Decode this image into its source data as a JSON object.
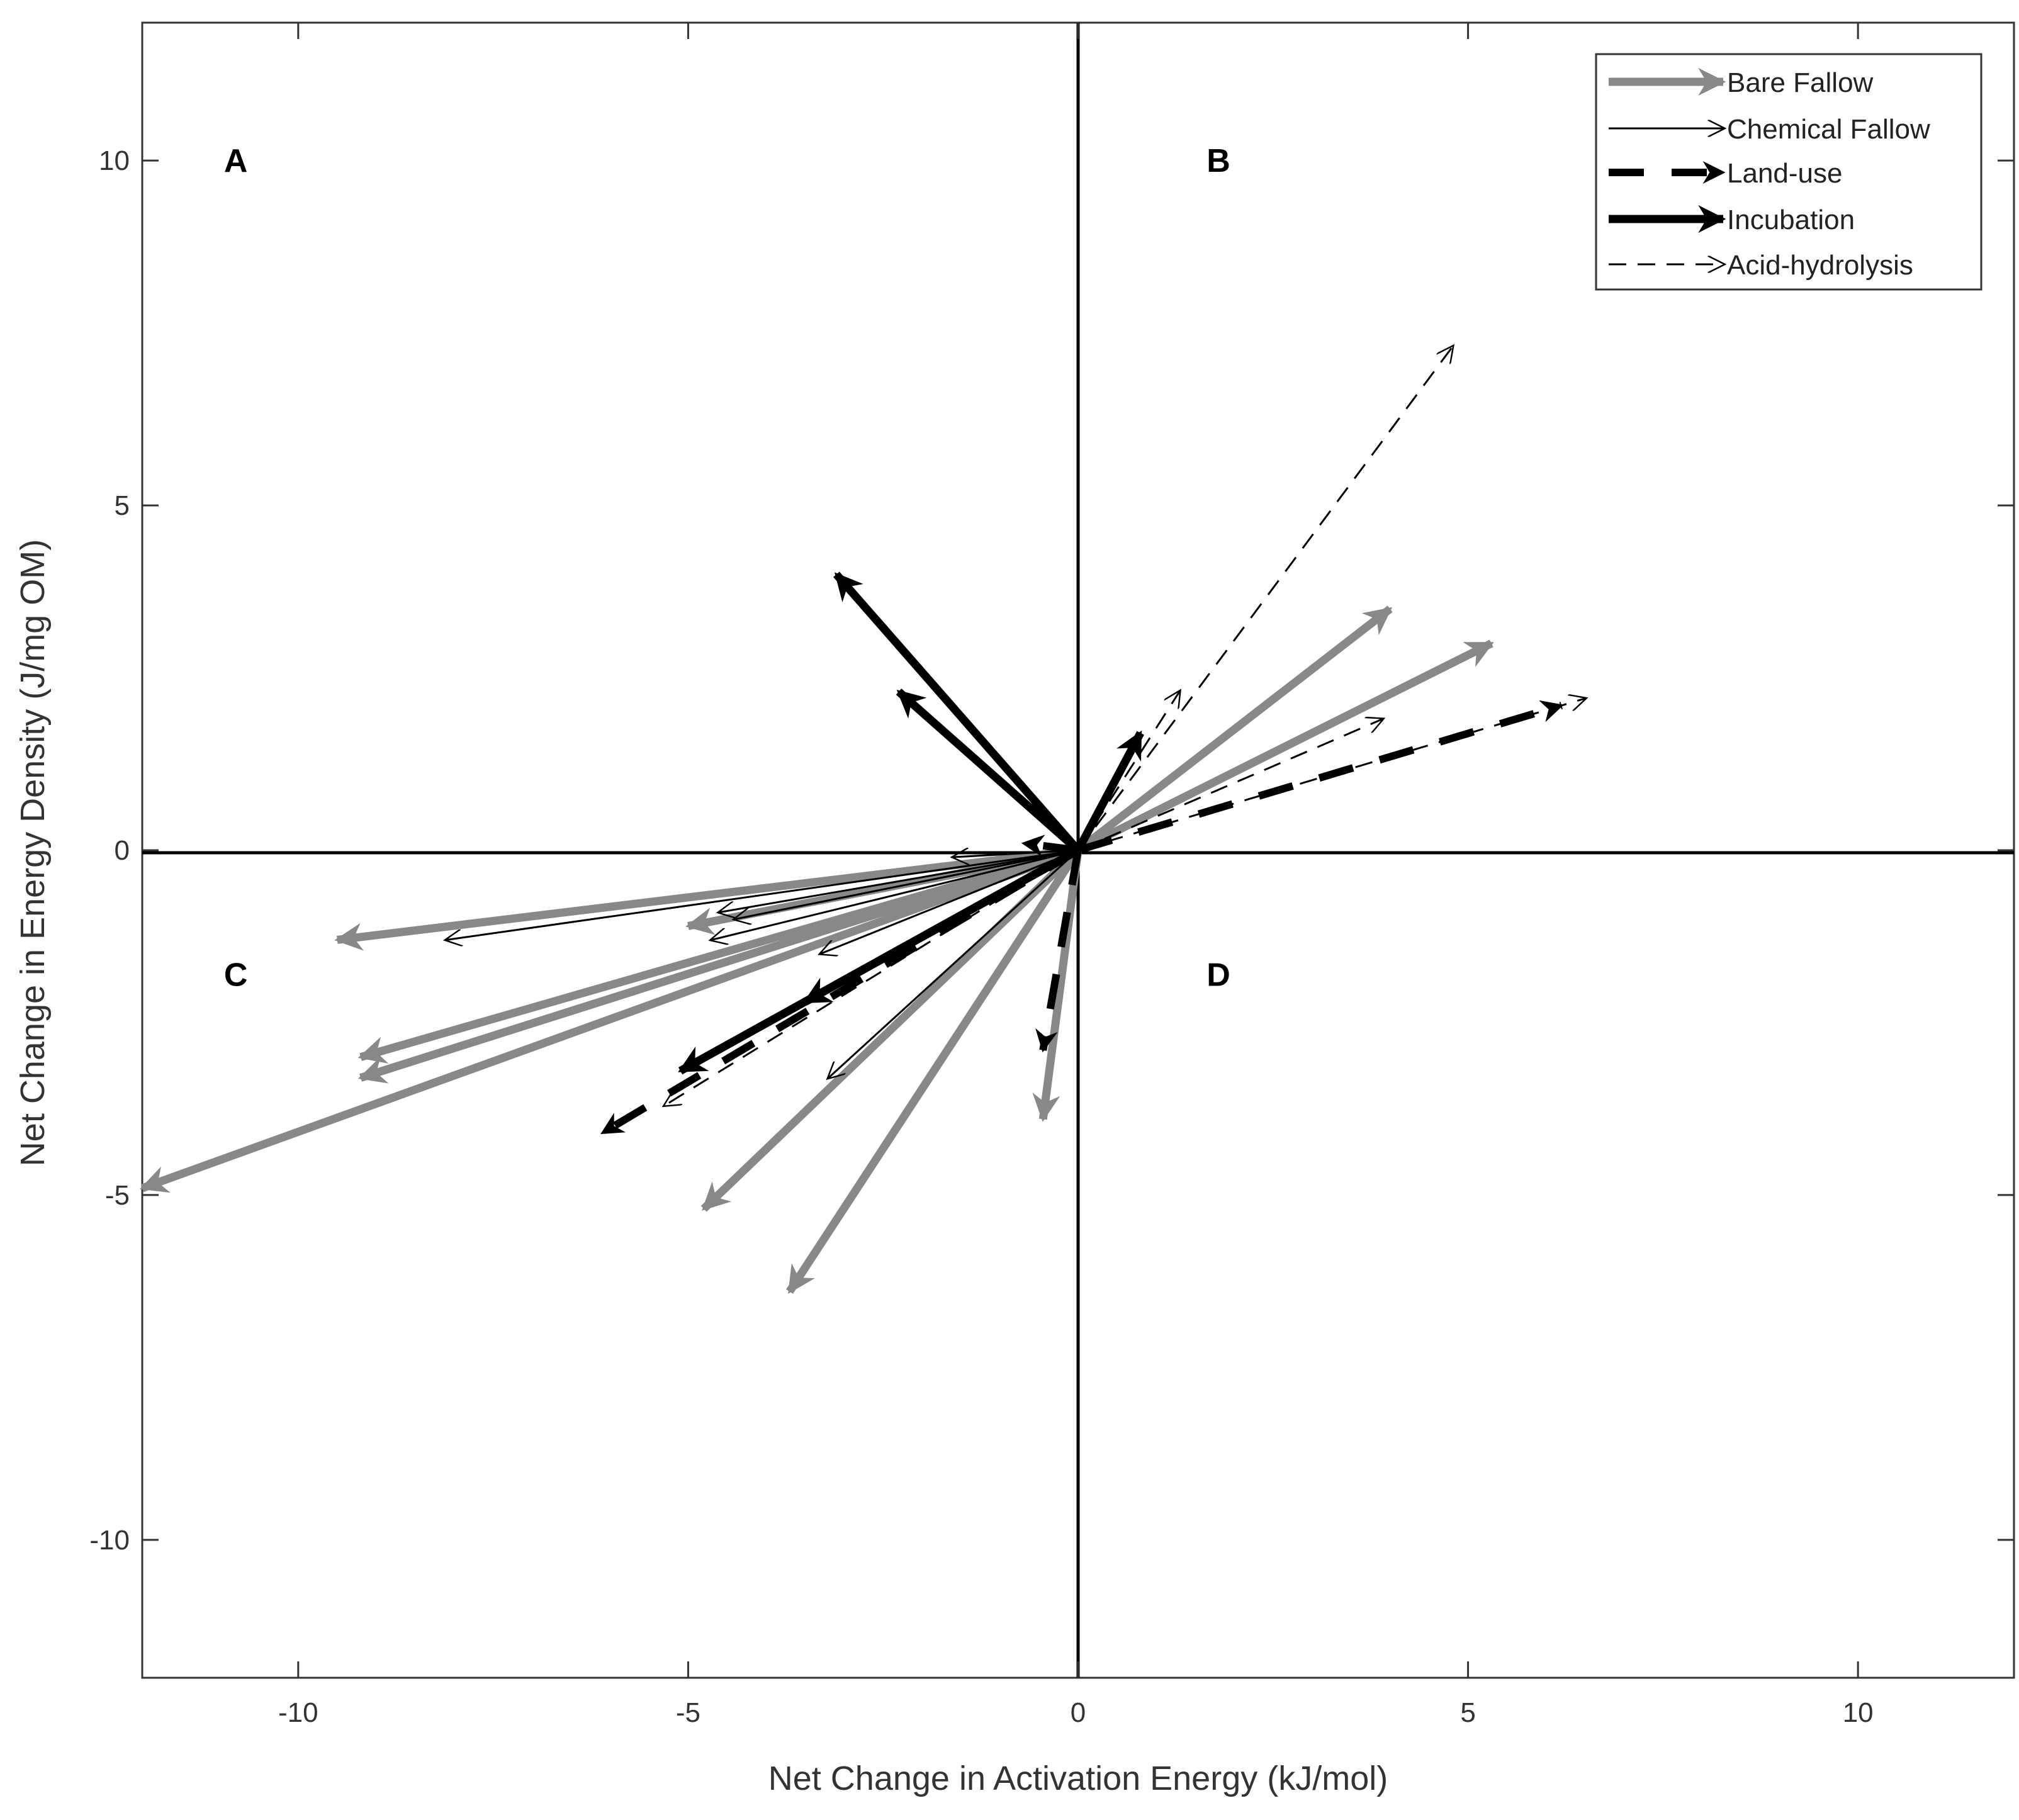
{
  "chart_data": {
    "type": "vector-field",
    "xlabel": "Net Change in Activation Energy (kJ/mol)",
    "ylabel": "Net Change in Energy Density (J/mg OM)",
    "xlim": [
      -12,
      12
    ],
    "ylim": [
      -12,
      12
    ],
    "xticks": [
      -10,
      -5,
      0,
      5,
      10
    ],
    "yticks": [
      -10,
      -5,
      0,
      5,
      10
    ],
    "xtick_labels": [
      "-10",
      "-5",
      "0",
      "5",
      "10"
    ],
    "ytick_labels": [
      "-10",
      "-5",
      "0",
      "5",
      "10"
    ],
    "grid": false,
    "legend_position": "top-right",
    "quadrant_labels": [
      {
        "text": "A",
        "x": -10.8,
        "y": 10
      },
      {
        "text": "B",
        "x": 1.8,
        "y": 10
      },
      {
        "text": "C",
        "x": -10.8,
        "y": -1.8
      },
      {
        "text": "D",
        "x": 1.8,
        "y": -1.8
      }
    ],
    "series": [
      {
        "name": "Bare Fallow",
        "style": "bare",
        "color": "#888888",
        "arrows": [
          {
            "x": -9.5,
            "y": -1.3
          },
          {
            "x": -9.2,
            "y": -3.0
          },
          {
            "x": -9.2,
            "y": -3.3
          },
          {
            "x": -12.0,
            "y": -4.9
          },
          {
            "x": -4.8,
            "y": -5.2
          },
          {
            "x": -3.7,
            "y": -6.4
          },
          {
            "x": -0.45,
            "y": -3.9
          },
          {
            "x": 4.0,
            "y": 3.5
          },
          {
            "x": 5.3,
            "y": 3.0
          },
          {
            "x": -5.0,
            "y": -1.1
          }
        ]
      },
      {
        "name": "Chemical Fallow",
        "style": "chemical",
        "color": "#000000",
        "arrows": [
          {
            "x": -8.1,
            "y": -1.3
          },
          {
            "x": -4.6,
            "y": -0.9
          },
          {
            "x": -4.4,
            "y": -1.0
          },
          {
            "x": -3.3,
            "y": -1.5
          },
          {
            "x": -3.2,
            "y": -3.3
          },
          {
            "x": -1.6,
            "y": -0.1
          },
          {
            "x": -4.7,
            "y": -1.3
          }
        ]
      },
      {
        "name": "Land-use",
        "style": "landuse",
        "color": "#000000",
        "arrows": [
          {
            "x": -6.1,
            "y": -4.1
          },
          {
            "x": -3.5,
            "y": -2.2
          },
          {
            "x": -0.45,
            "y": -2.9
          },
          {
            "x": 6.2,
            "y": 2.1
          },
          {
            "x": -0.7,
            "y": 0.1
          }
        ]
      },
      {
        "name": "Incubation",
        "style": "incubation",
        "color": "#000000",
        "arrows": [
          {
            "x": -3.1,
            "y": 4.0
          },
          {
            "x": -2.3,
            "y": 2.3
          },
          {
            "x": 0.8,
            "y": 1.7
          },
          {
            "x": -5.1,
            "y": -3.2
          },
          {
            "x": -3.5,
            "y": -2.2
          }
        ]
      },
      {
        "name": "Acid-hydrolysis",
        "style": "acid",
        "color": "#000000",
        "arrows": [
          {
            "x": 4.8,
            "y": 7.3
          },
          {
            "x": 1.3,
            "y": 2.3
          },
          {
            "x": 3.9,
            "y": 1.9
          },
          {
            "x": 6.5,
            "y": 2.2
          },
          {
            "x": -5.3,
            "y": -3.7
          }
        ]
      }
    ]
  }
}
